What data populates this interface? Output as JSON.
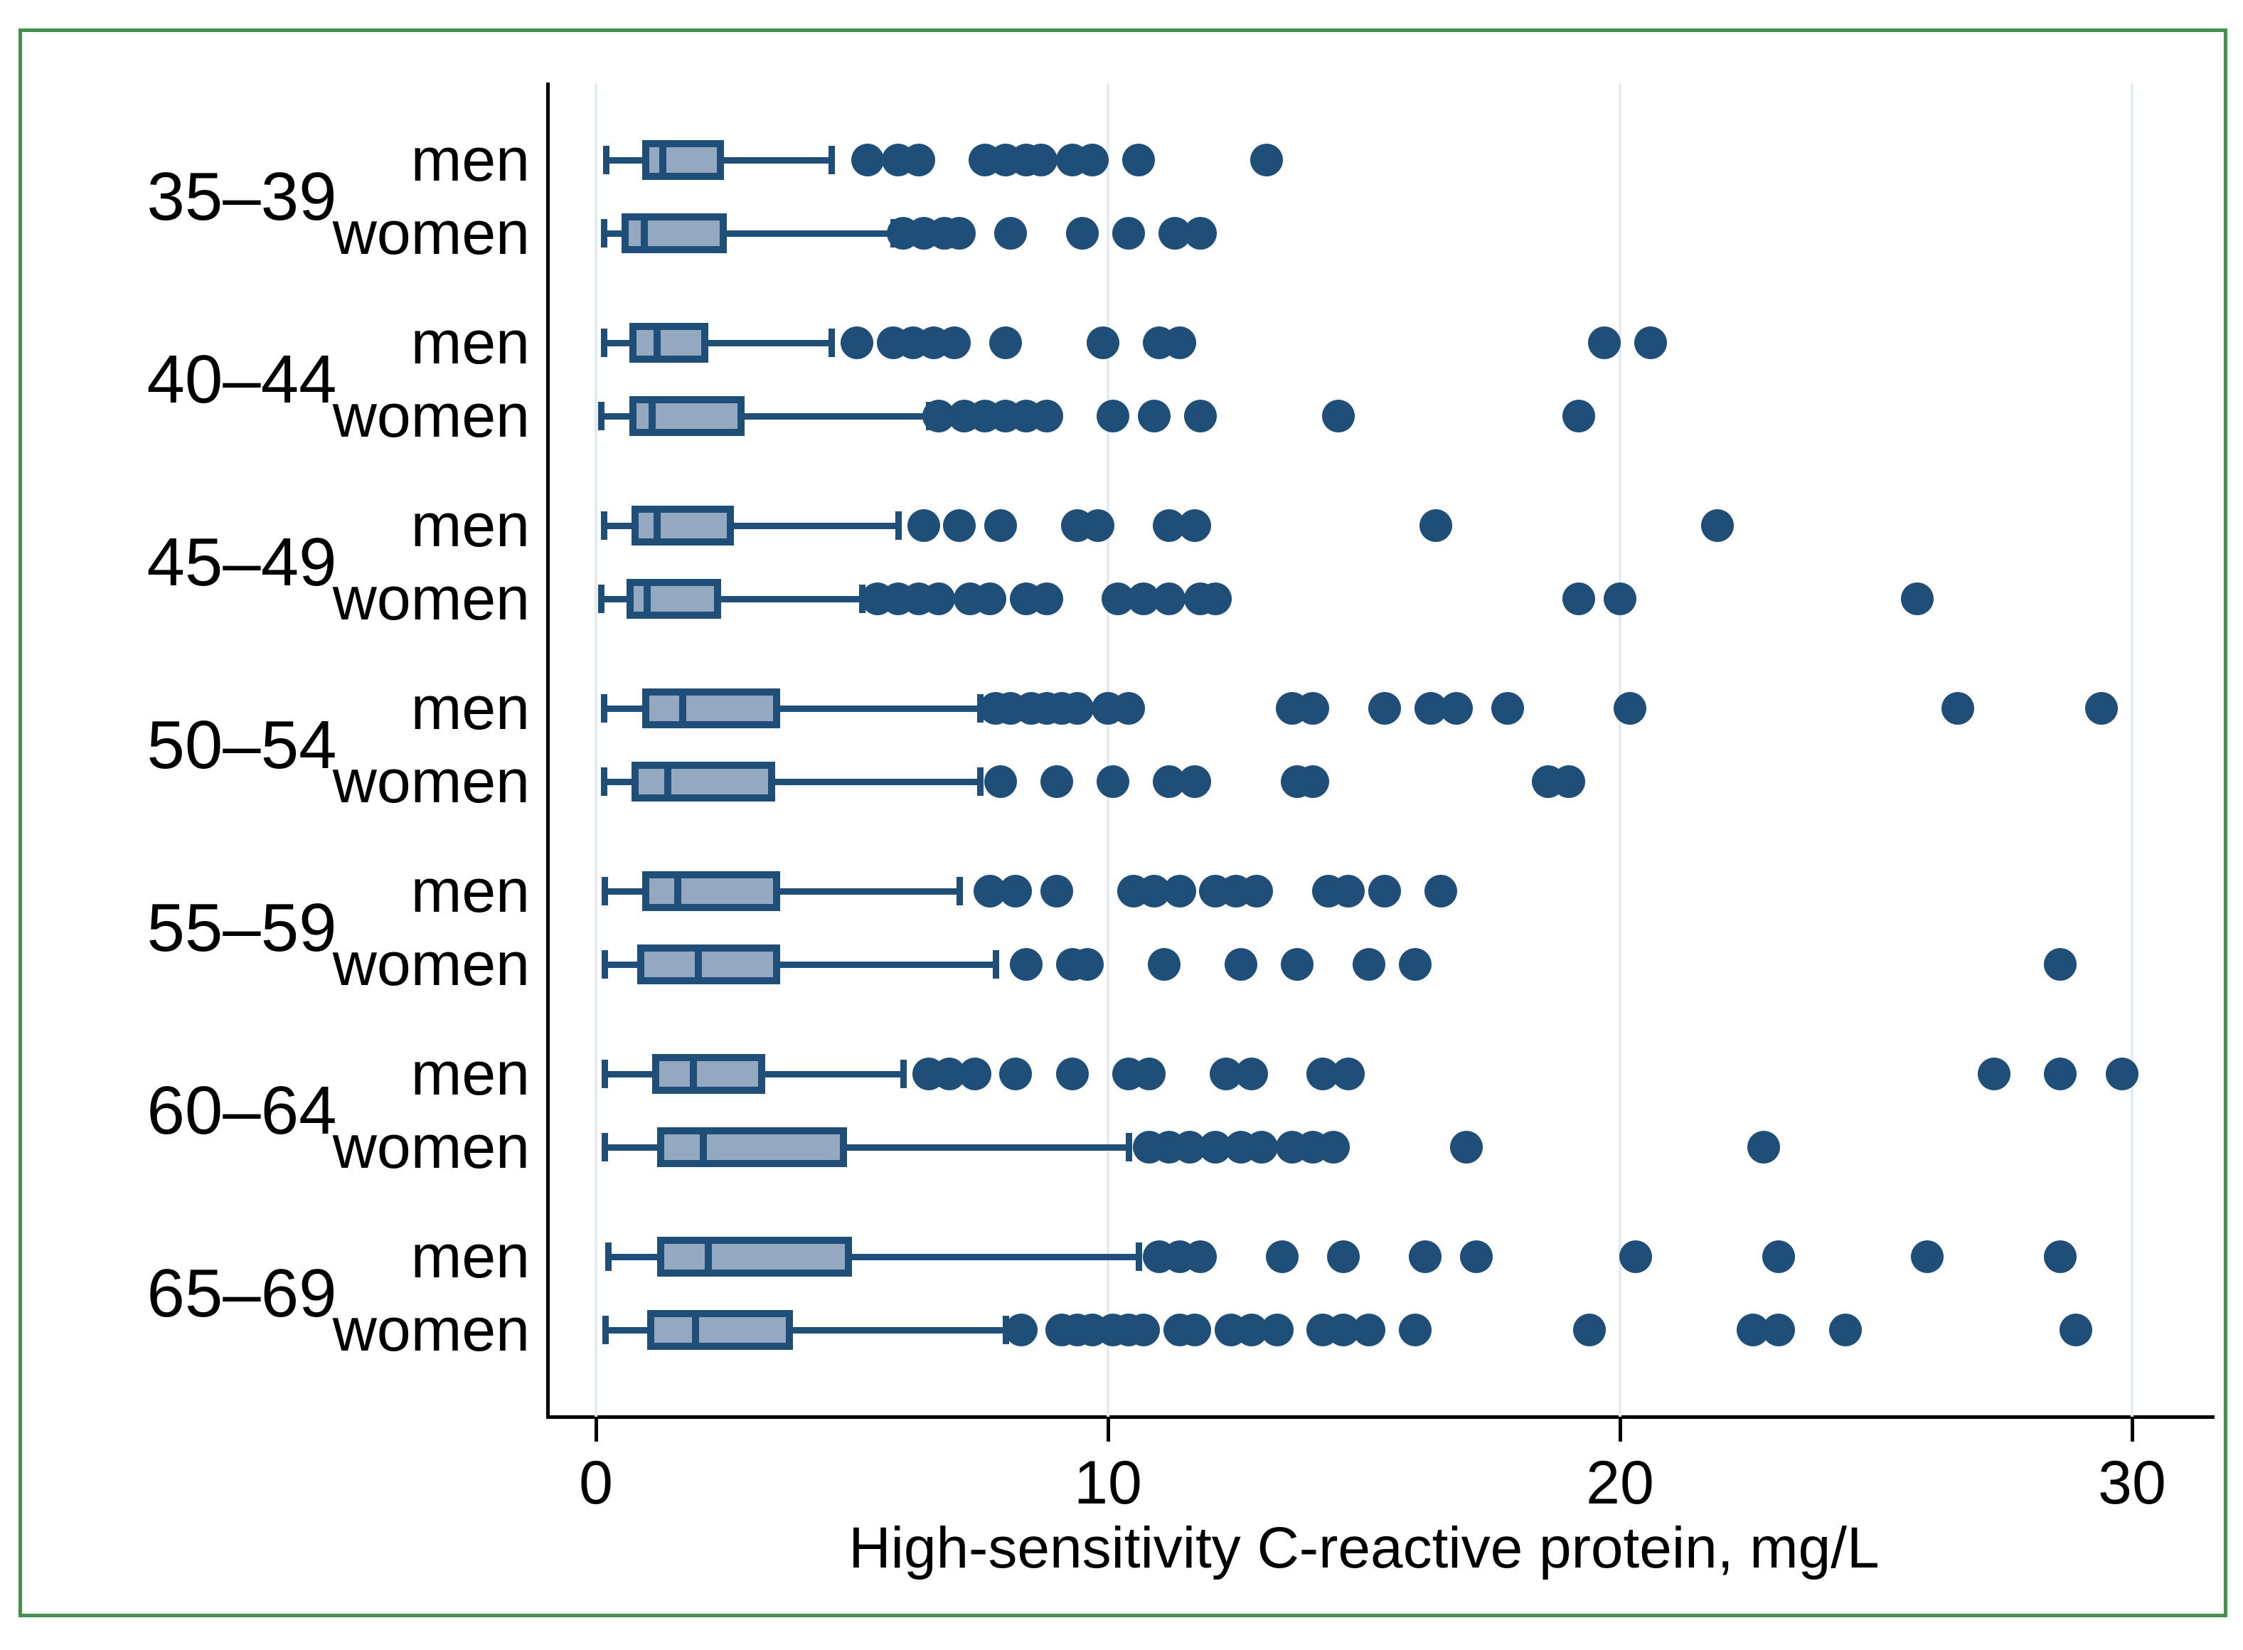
{
  "colors": {
    "frame": "#44914B",
    "grid": "#E4ECF2",
    "axis": "#000000",
    "text": "#000000",
    "box_fill": "#94A9C0",
    "box_stroke": "#1F4E79",
    "dot": "#1F4E79"
  },
  "chart_data": {
    "type": "boxplot-horizontal-with-outliers",
    "xlabel": "High-sensitivity C-reactive protein, mg/L",
    "x_ticks": [
      0,
      10,
      20,
      30
    ],
    "xlim": [
      0,
      30
    ],
    "grid": "vertical-light",
    "legend": "none",
    "groups": [
      {
        "label": "35–39",
        "rows": [
          {
            "sex": "men",
            "box": {
              "whisker_low": 0.2,
              "q1": 0.9,
              "median": 1.3,
              "q3": 2.5,
              "whisker_high": 4.6
            },
            "outliers": [
              5.3,
              5.9,
              6.3,
              7.6,
              8.0,
              8.4,
              8.7,
              9.3,
              9.7,
              10.6,
              13.1
            ]
          },
          {
            "sex": "women",
            "box": {
              "whisker_low": 0.15,
              "q1": 0.5,
              "median": 0.95,
              "q3": 2.55,
              "whisker_high": 5.8
            },
            "outliers": [
              6.0,
              6.4,
              6.8,
              7.1,
              8.1,
              9.5,
              10.4,
              11.3,
              11.8
            ]
          }
        ]
      },
      {
        "label": "40–44",
        "rows": [
          {
            "sex": "men",
            "box": {
              "whisker_low": 0.15,
              "q1": 0.65,
              "median": 1.2,
              "q3": 2.2,
              "whisker_high": 4.6
            },
            "outliers": [
              5.1,
              5.8,
              6.2,
              6.6,
              7.0,
              8.0,
              9.9,
              11.0,
              11.4,
              19.7,
              20.6
            ]
          },
          {
            "sex": "women",
            "box": {
              "whisker_low": 0.1,
              "q1": 0.65,
              "median": 1.1,
              "q3": 2.9,
              "whisker_high": 6.5
            },
            "outliers": [
              6.7,
              7.2,
              7.6,
              8.0,
              8.4,
              8.8,
              10.1,
              10.9,
              11.8,
              14.5,
              19.2
            ]
          }
        ]
      },
      {
        "label": "45–49",
        "rows": [
          {
            "sex": "men",
            "box": {
              "whisker_low": 0.15,
              "q1": 0.7,
              "median": 1.2,
              "q3": 2.7,
              "whisker_high": 5.9
            },
            "outliers": [
              6.4,
              7.1,
              7.9,
              9.4,
              9.8,
              11.2,
              11.7,
              16.4,
              21.9
            ]
          },
          {
            "sex": "women",
            "box": {
              "whisker_low": 0.1,
              "q1": 0.6,
              "median": 1.0,
              "q3": 2.45,
              "whisker_high": 5.2
            },
            "outliers": [
              5.5,
              5.9,
              6.3,
              6.7,
              7.3,
              7.7,
              8.4,
              8.8,
              10.2,
              10.7,
              11.2,
              11.8,
              12.1,
              19.2,
              20.0,
              25.8
            ]
          }
        ]
      },
      {
        "label": "50–54",
        "rows": [
          {
            "sex": "men",
            "box": {
              "whisker_low": 0.15,
              "q1": 0.9,
              "median": 1.7,
              "q3": 3.6,
              "whisker_high": 7.5
            },
            "outliers": [
              7.8,
              8.1,
              8.5,
              8.8,
              9.1,
              9.4,
              10.0,
              10.4,
              13.6,
              14.0,
              15.4,
              16.3,
              16.8,
              17.8,
              20.2,
              26.6,
              29.4
            ]
          },
          {
            "sex": "women",
            "box": {
              "whisker_low": 0.15,
              "q1": 0.7,
              "median": 1.4,
              "q3": 3.5,
              "whisker_high": 7.5
            },
            "outliers": [
              7.9,
              9.0,
              10.1,
              11.2,
              11.7,
              13.7,
              14.0,
              18.6,
              19.0
            ]
          }
        ]
      },
      {
        "label": "55–59",
        "rows": [
          {
            "sex": "men",
            "box": {
              "whisker_low": 0.17,
              "q1": 0.9,
              "median": 1.6,
              "q3": 3.6,
              "whisker_high": 7.1
            },
            "outliers": [
              7.7,
              8.2,
              9.0,
              10.5,
              10.9,
              11.4,
              12.1,
              12.5,
              12.9,
              14.3,
              14.7,
              15.4,
              16.5
            ]
          },
          {
            "sex": "women",
            "box": {
              "whisker_low": 0.17,
              "q1": 0.8,
              "median": 2.0,
              "q3": 3.6,
              "whisker_high": 7.8
            },
            "outliers": [
              8.4,
              9.3,
              9.6,
              11.1,
              12.6,
              13.7,
              15.1,
              16.0,
              28.6
            ]
          }
        ]
      },
      {
        "label": "60–64",
        "rows": [
          {
            "sex": "men",
            "box": {
              "whisker_low": 0.17,
              "q1": 1.1,
              "median": 1.9,
              "q3": 3.3,
              "whisker_high": 6.0
            },
            "outliers": [
              6.5,
              6.9,
              7.4,
              8.2,
              9.3,
              10.4,
              10.8,
              12.3,
              12.8,
              14.2,
              14.7,
              27.3,
              28.6,
              29.8
            ]
          },
          {
            "sex": "women",
            "box": {
              "whisker_low": 0.17,
              "q1": 1.2,
              "median": 2.1,
              "q3": 4.9,
              "whisker_high": 10.4
            },
            "outliers": [
              10.8,
              11.2,
              11.6,
              12.1,
              12.6,
              13.0,
              13.6,
              14.0,
              14.4,
              17.0,
              22.8
            ]
          }
        ]
      },
      {
        "label": "65–69",
        "rows": [
          {
            "sex": "men",
            "box": {
              "whisker_low": 0.24,
              "q1": 1.2,
              "median": 2.2,
              "q3": 5.0,
              "whisker_high": 10.6
            },
            "outliers": [
              11.0,
              11.4,
              11.8,
              13.4,
              14.6,
              16.2,
              17.2,
              20.3,
              23.1,
              26.0,
              28.6
            ]
          },
          {
            "sex": "women",
            "box": {
              "whisker_low": 0.18,
              "q1": 1.0,
              "median": 1.95,
              "q3": 3.85,
              "whisker_high": 8.0
            },
            "outliers": [
              8.3,
              9.1,
              9.4,
              9.7,
              10.1,
              10.4,
              10.7,
              11.4,
              11.7,
              12.4,
              12.8,
              13.3,
              14.2,
              14.6,
              15.1,
              16.0,
              19.4,
              22.6,
              23.1,
              24.4,
              28.9
            ]
          }
        ]
      }
    ]
  }
}
